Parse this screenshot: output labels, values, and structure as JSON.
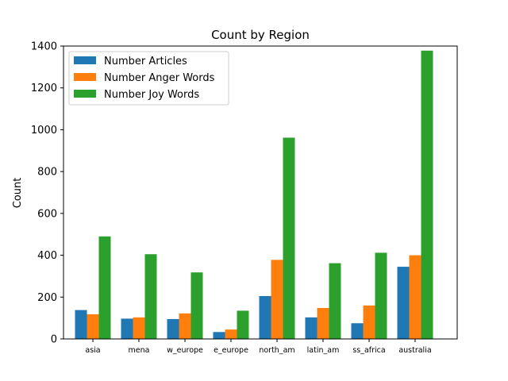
{
  "chart_data": {
    "type": "bar",
    "title": "Count by Region",
    "xlabel": "",
    "ylabel": "Count",
    "ylim": [
      0,
      1400
    ],
    "yticks": [
      0,
      200,
      400,
      600,
      800,
      1000,
      1200,
      1400
    ],
    "categories": [
      "asia",
      "mena",
      "w_europe",
      "e_europe",
      "north_am",
      "latin_am",
      "ss_africa",
      "australia"
    ],
    "series": [
      {
        "name": "Number Articles",
        "color": "#1f77b4",
        "values": [
          138,
          97,
          95,
          33,
          205,
          103,
          75,
          345
        ]
      },
      {
        "name": "Number Anger Words",
        "color": "#ff7f0e",
        "values": [
          118,
          103,
          122,
          45,
          378,
          148,
          160,
          400
        ]
      },
      {
        "name": "Number Joy Words",
        "color": "#2ca02c",
        "values": [
          490,
          405,
          318,
          135,
          962,
          362,
          412,
          1378
        ]
      }
    ],
    "grid": false,
    "legend_position": "upper-left"
  }
}
